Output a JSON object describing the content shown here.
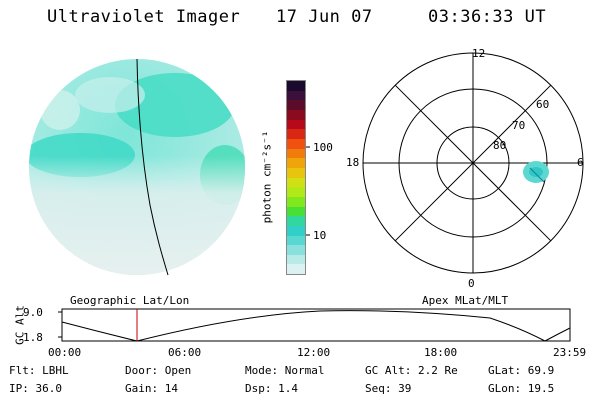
{
  "header": {
    "title": "Ultraviolet Imager",
    "date": "17 Jun 07",
    "time": "03:36:33 UT"
  },
  "colorbar": {
    "unit_label": "photon cm⁻²s⁻¹",
    "ticks": [
      "100",
      "10"
    ],
    "colors": [
      "#1a0a2e",
      "#3a0f3a",
      "#5a0c2a",
      "#8a0a1e",
      "#b60a1a",
      "#d82814",
      "#f05010",
      "#f07c0c",
      "#f0a40c",
      "#e8c40e",
      "#d0e014",
      "#b0e818",
      "#80e81c",
      "#48e034",
      "#30d8a0",
      "#30d0c8",
      "#58d8d0",
      "#8ae0dc",
      "#b8eae8",
      "#dcf2f2"
    ]
  },
  "polar": {
    "labels": {
      "top": "12",
      "left": "18",
      "right": "6",
      "bottom": "0"
    },
    "ring_labels": [
      "80",
      "70",
      "60"
    ]
  },
  "labels": {
    "geographic": "Geographic Lat/Lon",
    "apex": "Apex MLat/MLT"
  },
  "altitude_plot": {
    "axis_label": "GC Alt",
    "y_ticks": [
      "9.0",
      "1.8"
    ],
    "x_ticks": [
      "00:00",
      "06:00",
      "12:00",
      "18:00",
      "23:59"
    ]
  },
  "info": {
    "filter": "Flt: LBHL",
    "door": "Door: Open",
    "mode": "Mode: Normal",
    "gc_alt": "GC Alt: 2.2 Re",
    "glat": "GLat:  69.9",
    "ip": "IP: 36.0",
    "gain": "Gain: 14",
    "dsp": "Dsp:    1.4",
    "seq": "Seq: 39",
    "glon": "GLon:  19.5"
  }
}
